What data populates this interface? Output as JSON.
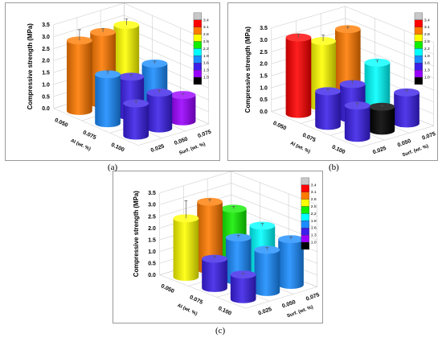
{
  "captions": {
    "a": "(a)",
    "b": "(b)",
    "c": "(c)"
  },
  "legend_colors": [
    "#c8c8c8",
    "#ff0000",
    "#ff7a00",
    "#ffff00",
    "#11ee00",
    "#00ffff",
    "#1a8cff",
    "#3a20e8",
    "#9a00ff",
    "#000000"
  ],
  "chart_data": [
    {
      "type": "bar",
      "panel": "a",
      "ylabel": "Compressive strength (MPa)",
      "xlabel": "Al (wt. %)",
      "zlabel": "Surf. (wt. %)",
      "x_ticks": [
        "0.050",
        "0.075",
        "0.100"
      ],
      "z_ticks": [
        "0.025",
        "0.050",
        "0.075"
      ],
      "y_ticks": [
        "0.0",
        "0.5",
        "1.0",
        "1.5",
        "2.0",
        "2.5",
        "3.0",
        "3.5"
      ],
      "ylim": [
        0,
        3.5
      ],
      "legend_labels": [
        "3.4",
        "3.1",
        "2.8",
        "2.5",
        "2.2",
        "1.9",
        "1.6",
        "1.3",
        "1.0"
      ],
      "bars": [
        {
          "al": "0.050",
          "surf": "0.025",
          "value": 2.95,
          "err": 0.45,
          "color": "#ff7a00"
        },
        {
          "al": "0.050",
          "surf": "0.050",
          "value": 3.0,
          "err": 0.15,
          "color": "#ff7a00"
        },
        {
          "al": "0.050",
          "surf": "0.075",
          "value": 3.0,
          "err": 0.25,
          "color": "#ffff00"
        },
        {
          "al": "0.075",
          "surf": "0.025",
          "value": 2.05,
          "err": 0.15,
          "color": "#1a8cff"
        },
        {
          "al": "0.075",
          "surf": "0.050",
          "value": 1.65,
          "err": 0.1,
          "color": "#3a20e8"
        },
        {
          "al": "0.075",
          "surf": "0.075",
          "value": 1.9,
          "err": 0.1,
          "color": "#1a8cff"
        },
        {
          "al": "0.100",
          "surf": "0.025",
          "value": 1.35,
          "err": 0.1,
          "color": "#3a20e8"
        },
        {
          "al": "0.100",
          "surf": "0.050",
          "value": 1.5,
          "err": 0.1,
          "color": "#3a20e8"
        },
        {
          "al": "0.100",
          "surf": "0.075",
          "value": 1.1,
          "err": 0.05,
          "color": "#9a00ff"
        }
      ]
    },
    {
      "type": "bar",
      "panel": "b",
      "ylabel": "Compressive strength (MPa)",
      "xlabel": "Al (wt. %)",
      "zlabel": "Surf. (wt. %)",
      "x_ticks": [
        "0.050",
        "0.075",
        "0.100"
      ],
      "z_ticks": [
        "0.025",
        "0.050",
        "0.075"
      ],
      "y_ticks": [
        "0.0",
        "0.5",
        "1.0",
        "1.5",
        "2.0",
        "2.5",
        "3.0",
        "3.5"
      ],
      "ylim": [
        0,
        3.5
      ],
      "legend_labels": [
        "3.4",
        "3.1",
        "2.8",
        "2.5",
        "2.2",
        "1.9",
        "1.6",
        "1.3",
        "1.0"
      ],
      "bars": [
        {
          "al": "0.050",
          "surf": "0.025",
          "value": 3.2,
          "err": 0.15,
          "color": "#ff0000"
        },
        {
          "al": "0.050",
          "surf": "0.050",
          "value": 2.75,
          "err": 0.25,
          "color": "#ffff00"
        },
        {
          "al": "0.050",
          "surf": "0.075",
          "value": 2.95,
          "err": 0.1,
          "color": "#ff7a00"
        },
        {
          "al": "0.075",
          "surf": "0.025",
          "value": 1.45,
          "err": 0.1,
          "color": "#3a20e8"
        },
        {
          "al": "0.075",
          "surf": "0.050",
          "value": 1.45,
          "err": 0.15,
          "color": "#3a20e8"
        },
        {
          "al": "0.075",
          "surf": "0.075",
          "value": 2.05,
          "err": 0.1,
          "color": "#00ffff"
        },
        {
          "al": "0.100",
          "surf": "0.025",
          "value": 1.35,
          "err": 0.1,
          "color": "#3a20e8"
        },
        {
          "al": "0.100",
          "surf": "0.050",
          "value": 1.0,
          "err": 0.05,
          "color": "#000000"
        },
        {
          "al": "0.100",
          "surf": "0.075",
          "value": 1.3,
          "err": 0.1,
          "color": "#3a20e8"
        }
      ]
    },
    {
      "type": "bar",
      "panel": "c",
      "ylabel": "Compressive strength (MPa)",
      "xlabel": "Al (wt. %)",
      "zlabel": "Surf. (wt. %)",
      "x_ticks": [
        "0.050",
        "0.075",
        "0.100"
      ],
      "z_ticks": [
        "0.025",
        "0.050",
        "0.075"
      ],
      "y_ticks": [
        "0.0",
        "0.5",
        "1.0",
        "1.5",
        "2.0",
        "2.5",
        "3.0",
        "3.5"
      ],
      "ylim": [
        0,
        3.5
      ],
      "legend_labels": [
        "3.4",
        "3.1",
        "2.8",
        "2.5",
        "2.2",
        "1.9",
        "1.6",
        "1.3",
        "1.0"
      ],
      "bars": [
        {
          "al": "0.050",
          "surf": "0.025",
          "value": 2.5,
          "err": 0.75,
          "color": "#ffff00"
        },
        {
          "al": "0.050",
          "surf": "0.050",
          "value": 2.9,
          "err": 0.1,
          "color": "#ff7a00"
        },
        {
          "al": "0.050",
          "surf": "0.075",
          "value": 2.3,
          "err": 0.1,
          "color": "#11ee00"
        },
        {
          "al": "0.075",
          "surf": "0.025",
          "value": 1.25,
          "err": 0.1,
          "color": "#3a20e8"
        },
        {
          "al": "0.075",
          "surf": "0.050",
          "value": 1.85,
          "err": 0.1,
          "color": "#1a8cff"
        },
        {
          "al": "0.075",
          "surf": "0.075",
          "value": 2.05,
          "err": 0.1,
          "color": "#00ffff"
        },
        {
          "al": "0.100",
          "surf": "0.025",
          "value": 1.05,
          "err": 0.05,
          "color": "#3a20e8"
        },
        {
          "al": "0.100",
          "surf": "0.050",
          "value": 1.8,
          "err": 0.1,
          "color": "#1a8cff"
        },
        {
          "al": "0.100",
          "surf": "0.075",
          "value": 1.95,
          "err": 0.1,
          "color": "#1a8cff"
        }
      ]
    }
  ]
}
